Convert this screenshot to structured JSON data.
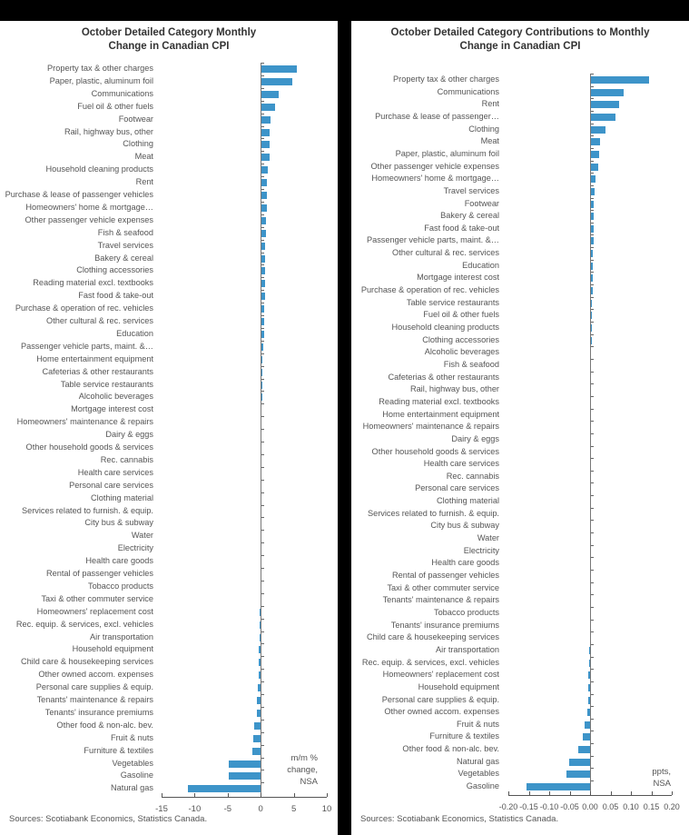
{
  "chart_data": [
    {
      "type": "bar",
      "orientation": "horizontal",
      "title": "October Detailed Category Monthly Change in Canadian CPI",
      "xlabel": "m/m % change, NSA",
      "unit_label": [
        "m/m %",
        "change,",
        "NSA"
      ],
      "xlim": [
        -15,
        10
      ],
      "xticks": [
        "-15",
        "-10",
        "-5",
        "0",
        "5",
        "10"
      ],
      "grid": false,
      "source": "Sources: Scotiabank Economics, Statistics Canada.",
      "categories": [
        "Property tax & other charges",
        "Paper, plastic, aluminum foil",
        "Communications",
        "Fuel oil & other fuels",
        "Footwear",
        "Rail, highway bus, other",
        "Clothing",
        "Meat",
        "Household cleaning products",
        "Rent",
        "Purchase & lease of passenger vehicles",
        "Homeowners' home & mortgage…",
        "Other passenger vehicle expenses",
        "Fish & seafood",
        "Travel services",
        "Bakery & cereal",
        "Clothing accessories",
        "Reading material excl. textbooks",
        "Fast food & take-out",
        "Purchase & operation of rec. vehicles",
        "Other cultural & rec. services",
        "Education",
        "Passenger vehicle parts, maint. &…",
        "Home entertainment equipment",
        "Cafeterias & other restaurants",
        "Table service restaurants",
        "Alcoholic beverages",
        "Mortgage interest cost",
        "Homeowners' maintenance & repairs",
        "Dairy & eggs",
        "Other household goods & services",
        "Rec. cannabis",
        "Health care services",
        "Personal care services",
        "Clothing material",
        "Services related to furnish. & equip.",
        "City bus & subway",
        "Water",
        "Electricity",
        "Health care goods",
        "Rental of passenger vehicles",
        "Tobacco products",
        "Taxi & other commuter service",
        "Homeowners' replacement cost",
        "Rec. equip. & services, excl. vehicles",
        "Air transportation",
        "Household equipment",
        "Child care & housekeeping services",
        "Other owned accom. expenses",
        "Personal care supplies & equip.",
        "Tenants' maintenance & repairs",
        "Tenants' insurance premiums",
        "Other food & non-alc. bev.",
        "Fruit & nuts",
        "Furniture & textiles",
        "Vegetables",
        "Gasoline",
        "Natural gas"
      ],
      "values": [
        5.5,
        4.8,
        2.7,
        2.2,
        1.5,
        1.4,
        1.3,
        1.3,
        1.1,
        1.0,
        0.9,
        0.9,
        0.8,
        0.8,
        0.7,
        0.7,
        0.7,
        0.6,
        0.6,
        0.5,
        0.5,
        0.5,
        0.4,
        0.3,
        0.3,
        0.2,
        0.2,
        0.1,
        0.1,
        0.1,
        0.0,
        0.0,
        0.0,
        0.0,
        0.0,
        0.0,
        0.0,
        0.0,
        0.0,
        0.0,
        0.0,
        0.0,
        0.0,
        -0.1,
        -0.2,
        -0.2,
        -0.3,
        -0.3,
        -0.3,
        -0.4,
        -0.6,
        -0.6,
        -1.0,
        -1.1,
        -1.2,
        -4.8,
        -4.8,
        -11.0
      ]
    },
    {
      "type": "bar",
      "orientation": "horizontal",
      "title": "October Detailed Category Contributions to Monthly Change in Canadian CPI",
      "xlabel": "ppts, NSA",
      "unit_label": [
        "ppts,",
        "NSA"
      ],
      "xlim": [
        -0.2,
        0.2
      ],
      "xticks": [
        "-0.20",
        "-0.15",
        "-0.10",
        "-0.05",
        "0.00",
        "0.05",
        "0.10",
        "0.15",
        "0.20"
      ],
      "grid": false,
      "source": "Sources: Scotiabank Economics, Statistics Canada.",
      "categories": [
        "Property tax & other charges",
        "Communications",
        "Rent",
        "Purchase & lease of passenger…",
        "Clothing",
        "Meat",
        "Paper, plastic, aluminum foil",
        "Other passenger vehicle expenses",
        "Homeowners' home & mortgage…",
        "Travel services",
        "Footwear",
        "Bakery & cereal",
        "Fast food & take-out",
        "Passenger vehicle parts, maint. &…",
        "Other cultural & rec. services",
        "Education",
        "Mortgage interest cost",
        "Purchase & operation of rec. vehicles",
        "Table service restaurants",
        "Fuel oil & other fuels",
        "Household cleaning products",
        "Clothing accessories",
        "Alcoholic beverages",
        "Fish & seafood",
        "Cafeterias & other restaurants",
        "Rail, highway bus, other",
        "Reading material excl. textbooks",
        "Home entertainment equipment",
        "Homeowners' maintenance & repairs",
        "Dairy & eggs",
        "Other household goods & services",
        "Health care services",
        "Rec. cannabis",
        "Personal care services",
        "Clothing material",
        "Services related to furnish. & equip.",
        "City bus & subway",
        "Water",
        "Electricity",
        "Health care goods",
        "Rental of passenger vehicles",
        "Taxi & other commuter service",
        "Tenants' maintenance & repairs",
        "Tobacco products",
        "Tenants' insurance premiums",
        "Child care & housekeeping services",
        "Air transportation",
        "Rec. equip. & services, excl. vehicles",
        "Homeowners' replacement cost",
        "Household equipment",
        "Personal care supplies & equip.",
        "Other owned accom. expenses",
        "Fruit & nuts",
        "Furniture & textiles",
        "Other food & non-alc. bev.",
        "Natural gas",
        "Vegetables",
        "Gasoline"
      ],
      "values": [
        0.145,
        0.083,
        0.071,
        0.063,
        0.038,
        0.025,
        0.022,
        0.021,
        0.013,
        0.011,
        0.009,
        0.009,
        0.008,
        0.008,
        0.007,
        0.007,
        0.006,
        0.006,
        0.005,
        0.005,
        0.004,
        0.004,
        0.003,
        0.003,
        0.002,
        0.002,
        0.001,
        0.001,
        0.001,
        0.0,
        0.0,
        0.0,
        0.0,
        0.0,
        0.0,
        0.0,
        0.0,
        0.0,
        0.0,
        0.0,
        0.0,
        0.0,
        0.0,
        0.0,
        0.0,
        -0.001,
        -0.002,
        -0.003,
        -0.004,
        -0.004,
        -0.004,
        -0.006,
        -0.014,
        -0.018,
        -0.029,
        -0.052,
        -0.058,
        -0.155
      ]
    }
  ],
  "colors": {
    "bar": "#3d94c9",
    "background": "#ffffff",
    "frame": "#000000"
  }
}
